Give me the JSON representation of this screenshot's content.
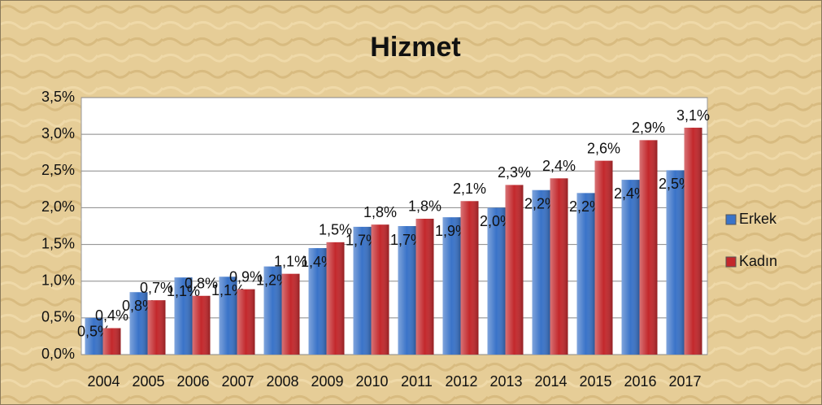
{
  "chart_data": {
    "type": "bar",
    "title": "Hizmet",
    "categories": [
      "2004",
      "2005",
      "2006",
      "2007",
      "2008",
      "2009",
      "2010",
      "2011",
      "2012",
      "2013",
      "2014",
      "2015",
      "2016",
      "2017"
    ],
    "series": [
      {
        "name": "Erkek",
        "color": "#3a73c8",
        "values": [
          0.5,
          0.85,
          1.05,
          1.06,
          1.2,
          1.45,
          1.74,
          1.75,
          1.87,
          2.0,
          2.24,
          2.2,
          2.38,
          2.51
        ],
        "value_labels": [
          "0,5%",
          "0,8%",
          "1,1%",
          "1,1%",
          "1,2%",
          "1,4%",
          "1,7%",
          "1,7%",
          "1,9%",
          "2,0%",
          "2,2%",
          "2,2%",
          "2,4%",
          "2,5%"
        ]
      },
      {
        "name": "Kadın",
        "color": "#c3282c",
        "values": [
          0.36,
          0.74,
          0.8,
          0.89,
          1.1,
          1.53,
          1.77,
          1.85,
          2.09,
          2.31,
          2.4,
          2.64,
          2.92,
          3.09
        ],
        "value_labels": [
          "0,4%",
          "0,7%",
          "0,8%",
          "0,9%",
          "1,1%",
          "1,5%",
          "1,8%",
          "1,8%",
          "2,1%",
          "2,3%",
          "2,4%",
          "2,6%",
          "2,9%",
          "3,1%"
        ]
      }
    ],
    "ylim": [
      0,
      3.5
    ],
    "yticks": [
      {
        "value": 0,
        "label": "0,0%"
      },
      {
        "value": 0.5,
        "label": "0,5%"
      },
      {
        "value": 1,
        "label": "1,0%"
      },
      {
        "value": 1.5,
        "label": "1,5%"
      },
      {
        "value": 2,
        "label": "2,0%"
      },
      {
        "value": 2.5,
        "label": "2,5%"
      },
      {
        "value": 3,
        "label": "3,0%"
      },
      {
        "value": 3.5,
        "label": "3,5%"
      }
    ],
    "grid": true,
    "legend": "right"
  }
}
